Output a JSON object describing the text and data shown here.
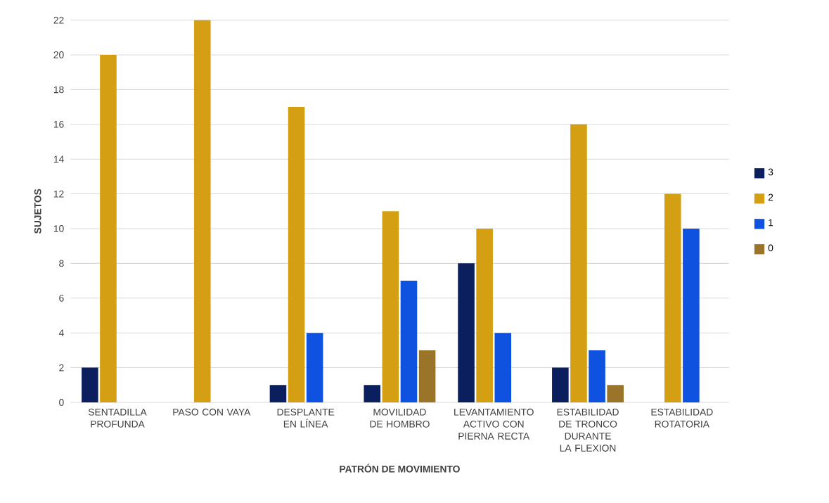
{
  "chart_data": {
    "type": "bar",
    "xlabel": "PATRÓN DE MOVIMIENTO",
    "ylabel": "SUJETOS",
    "categories": [
      "SENTADILLA PROFUNDA",
      "PASO CON VAYA",
      "DESPLANTE EN LÍNEA",
      "MOVILIDAD DE HOMBRO",
      "LEVANTAMIENTO ACTIVO CON PIERNA RECTA",
      "ESTABILIDAD DE TRONCO DURANTE LA FLEXION",
      "ESTABILIDAD ROTATORIA"
    ],
    "series": [
      {
        "name": "3",
        "color": "#0b1f5e",
        "values": [
          2,
          null,
          1,
          1,
          8,
          2,
          null
        ]
      },
      {
        "name": "2",
        "color": "#d49f12",
        "values": [
          20,
          22,
          17,
          11,
          10,
          16,
          12
        ]
      },
      {
        "name": "1",
        "color": "#0f52e0",
        "values": [
          null,
          null,
          4,
          7,
          4,
          3,
          10
        ]
      },
      {
        "name": "0",
        "color": "#9a7429",
        "values": [
          null,
          null,
          null,
          3,
          null,
          1,
          null
        ]
      }
    ],
    "ylim": [
      0,
      22
    ],
    "yticks": [
      0,
      2,
      4,
      6,
      8,
      10,
      12,
      14,
      16,
      18,
      20,
      22
    ],
    "grid": "y",
    "legend": "right"
  }
}
